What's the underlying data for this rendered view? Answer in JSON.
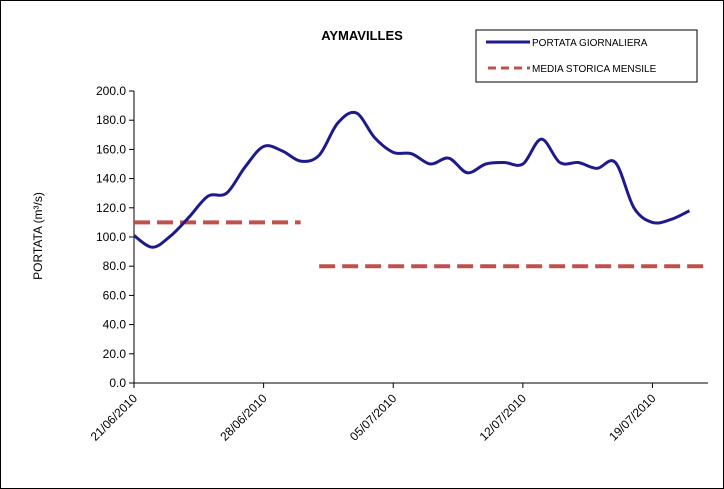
{
  "chart_data": {
    "type": "line",
    "title": "AYMAVILLES",
    "xlabel": "",
    "ylabel": "PORTATA (m³/s)",
    "ylim": [
      0,
      200
    ],
    "yticks": [
      "0.0",
      "20.0",
      "40.0",
      "60.0",
      "80.0",
      "100.0",
      "120.0",
      "140.0",
      "160.0",
      "180.0",
      "200.0"
    ],
    "xticks": [
      "21/06/2010",
      "28/06/2010",
      "05/07/2010",
      "12/07/2010",
      "19/07/2010"
    ],
    "xlim": [
      "21/06/2010",
      "22/07/2010"
    ],
    "grid": false,
    "legend_position": "top-right",
    "series": [
      {
        "name": "PORTATA GIORNALIERA",
        "style": "solid",
        "color": "#1f1a8c",
        "x": [
          "21/06/2010",
          "22/06/2010",
          "23/06/2010",
          "24/06/2010",
          "25/06/2010",
          "26/06/2010",
          "27/06/2010",
          "28/06/2010",
          "29/06/2010",
          "30/06/2010",
          "01/07/2010",
          "02/07/2010",
          "03/07/2010",
          "04/07/2010",
          "05/07/2010",
          "06/07/2010",
          "07/07/2010",
          "08/07/2010",
          "09/07/2010",
          "10/07/2010",
          "11/07/2010",
          "12/07/2010",
          "13/07/2010",
          "14/07/2010",
          "15/07/2010",
          "16/07/2010",
          "17/07/2010",
          "18/07/2010",
          "19/07/2010",
          "20/07/2010",
          "21/07/2010"
        ],
        "values": [
          101,
          93,
          101,
          114,
          128,
          130,
          148,
          162,
          159,
          152,
          156,
          178,
          185,
          168,
          158,
          157,
          150,
          154,
          144,
          150,
          151,
          150,
          167,
          151,
          151,
          147,
          151,
          120,
          110,
          112,
          118
        ]
      },
      {
        "name": "MEDIA STORICA MENSILE",
        "style": "dashed",
        "color": "#c0504d",
        "segments": [
          {
            "x_start": "21/06/2010",
            "x_end": "30/06/2010",
            "value": 110
          },
          {
            "x_start": "01/07/2010",
            "x_end": "22/07/2010",
            "value": 80
          }
        ]
      }
    ]
  }
}
